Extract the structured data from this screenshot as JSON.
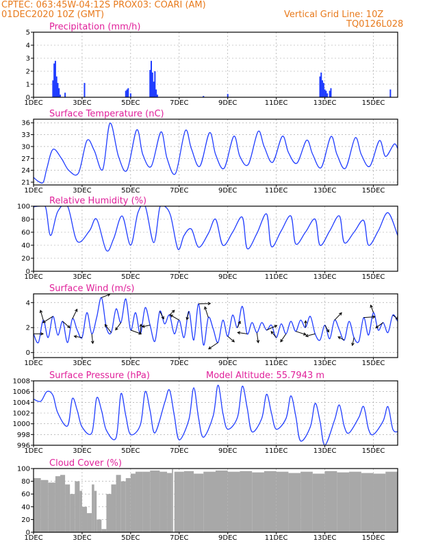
{
  "header": {
    "line1": "CPTEC:   063:45W-04:12S   PROX03: COARI (AM)",
    "line2": "01DEC2020 10Z (GMT)",
    "grid_note": "Vertical Grid Line: 10Z",
    "code": "TQ0126L028"
  },
  "colors": {
    "header": "#e87a1c",
    "panel_title": "#e0209a",
    "series": "#1f3cff",
    "cloud": "#a8a8a8",
    "wind_vectors": "#000000",
    "grid": "#999999"
  },
  "x_tick_labels": [
    "1DEC",
    "3DEC",
    "5DEC",
    "7DEC",
    "9DEC",
    "11DEC",
    "13DEC",
    "15DEC"
  ],
  "x_tick_days": [
    1,
    3,
    5,
    7,
    9,
    11,
    13,
    15
  ],
  "chart_data": [
    {
      "type": "bar",
      "title": "Precipitation (mm/h)",
      "ylim": [
        0,
        5
      ],
      "yticks": [
        "0",
        "1",
        "2",
        "3",
        "4",
        "5"
      ],
      "grid": true,
      "x_days": [
        1.8,
        1.85,
        1.9,
        1.95,
        2.0,
        2.05,
        2.1,
        2.3,
        3.1,
        4.8,
        4.85,
        4.9,
        5.0,
        5.8,
        5.85,
        5.9,
        5.95,
        6.0,
        6.05,
        6.1,
        8.0,
        9.0,
        12.8,
        12.85,
        12.9,
        12.95,
        13.0,
        13.05,
        13.1,
        13.2,
        13.25,
        15.7
      ],
      "values": [
        1.3,
        2.6,
        2.8,
        1.6,
        1.1,
        0.7,
        0.2,
        0.35,
        1.1,
        0.5,
        0.6,
        0.7,
        0.3,
        2.1,
        2.8,
        1.9,
        1.2,
        2.0,
        0.6,
        0.2,
        0.1,
        0.25,
        1.6,
        1.9,
        1.3,
        1.1,
        0.6,
        0.5,
        0.3,
        0.5,
        0.7,
        0.6
      ]
    },
    {
      "type": "line",
      "title": "Surface Temperature (nC)",
      "ylim": [
        20.3,
        36.9
      ],
      "yticks": [
        "21",
        "24",
        "27",
        "30",
        "33",
        "36"
      ],
      "grid": true,
      "x_days": [
        1.0,
        1.2,
        1.4,
        1.55,
        1.8,
        2.15,
        2.45,
        2.85,
        3.2,
        3.5,
        3.85,
        4.15,
        4.5,
        4.85,
        5.25,
        5.5,
        5.85,
        6.25,
        6.5,
        6.85,
        7.25,
        7.5,
        7.85,
        8.25,
        8.5,
        8.85,
        9.25,
        9.5,
        9.85,
        10.25,
        10.5,
        10.85,
        11.25,
        11.5,
        11.85,
        12.25,
        12.5,
        12.85,
        13.25,
        13.5,
        13.85,
        14.25,
        14.5,
        14.85,
        15.25,
        15.5,
        15.85,
        16.0
      ],
      "values": [
        22.2,
        21.2,
        21.0,
        24.5,
        29.3,
        27.0,
        24.0,
        23.3,
        31.5,
        29.0,
        24.2,
        35.9,
        27.5,
        24.0,
        34.2,
        28.0,
        25.0,
        33.7,
        27.0,
        23.2,
        34.0,
        29.5,
        25.0,
        33.5,
        28.0,
        24.5,
        32.6,
        27.5,
        25.5,
        33.8,
        30.0,
        26.0,
        32.6,
        28.5,
        25.8,
        31.6,
        28.0,
        24.7,
        32.5,
        28.0,
        24.5,
        32.2,
        28.0,
        25.0,
        31.5,
        27.5,
        30.6,
        29.5
      ]
    },
    {
      "type": "line",
      "title": "Relative Humidity (%)",
      "ylim": [
        0,
        100
      ],
      "yticks": [
        "0",
        "20",
        "40",
        "60",
        "80",
        "100"
      ],
      "grid": true,
      "x_days": [
        1.0,
        1.25,
        1.5,
        1.7,
        2.0,
        2.4,
        2.8,
        3.3,
        3.6,
        4.0,
        4.3,
        4.65,
        5.0,
        5.3,
        5.6,
        5.95,
        6.2,
        6.4,
        6.65,
        6.95,
        7.2,
        7.5,
        7.8,
        8.2,
        8.5,
        8.8,
        9.2,
        9.6,
        9.8,
        10.2,
        10.6,
        10.8,
        11.2,
        11.6,
        11.8,
        12.2,
        12.6,
        12.8,
        13.2,
        13.6,
        13.8,
        14.2,
        14.6,
        14.8,
        15.2,
        15.6,
        16.0
      ],
      "values": [
        99,
        100,
        98,
        55,
        92,
        100,
        46,
        62,
        80,
        32,
        50,
        85,
        40,
        90,
        100,
        44,
        98,
        100,
        85,
        34,
        55,
        65,
        37,
        58,
        80,
        40,
        60,
        83,
        35,
        58,
        88,
        38,
        62,
        85,
        42,
        60,
        80,
        40,
        62,
        85,
        44,
        60,
        78,
        40,
        62,
        90,
        55
      ]
    },
    {
      "type": "line",
      "title": "Surface Wind (m/s)",
      "ylim": [
        -0.4,
        4.7
      ],
      "yticks": [
        "0",
        "2",
        "4"
      ],
      "grid": true,
      "wind_vectors": true,
      "x_days": [
        1.0,
        1.2,
        1.4,
        1.6,
        1.8,
        2.0,
        2.2,
        2.4,
        2.6,
        2.8,
        3.0,
        3.2,
        3.4,
        3.6,
        3.8,
        4.0,
        4.2,
        4.4,
        4.6,
        4.8,
        5.0,
        5.2,
        5.4,
        5.6,
        5.8,
        6.0,
        6.2,
        6.4,
        6.6,
        6.8,
        7.0,
        7.2,
        7.4,
        7.6,
        7.8,
        8.0,
        8.2,
        8.4,
        8.6,
        8.8,
        9.0,
        9.2,
        9.4,
        9.6,
        9.8,
        10.0,
        10.2,
        10.4,
        10.6,
        10.8,
        11.0,
        11.2,
        11.4,
        11.6,
        11.8,
        12.0,
        12.2,
        12.4,
        12.6,
        12.8,
        13.0,
        13.2,
        13.4,
        13.6,
        13.8,
        14.0,
        14.2,
        14.4,
        14.6,
        14.8,
        15.0,
        15.2,
        15.4,
        15.6,
        15.8,
        16.0
      ],
      "values": [
        1.5,
        0.8,
        2.6,
        1.2,
        2.9,
        1.4,
        2.5,
        0.8,
        2.7,
        1.8,
        1.2,
        3.2,
        1.5,
        2.8,
        4.4,
        2.0,
        1.6,
        3.5,
        2.4,
        4.3,
        1.8,
        3.2,
        1.5,
        3.6,
        2.2,
        0.9,
        3.3,
        2.3,
        3.0,
        1.5,
        2.6,
        1.2,
        3.3,
        1.0,
        3.9,
        0.6,
        2.8,
        1.9,
        0.8,
        2.6,
        1.3,
        3.0,
        2.0,
        3.7,
        1.5,
        2.4,
        1.6,
        2.4,
        1.8,
        2.2,
        1.2,
        2.3,
        1.5,
        2.5,
        1.7,
        2.6,
        2.0,
        2.9,
        1.5,
        1.0,
        2.2,
        1.1,
        2.6,
        1.8,
        1.0,
        2.5,
        1.2,
        0.9,
        2.8,
        1.4,
        3.2,
        1.8,
        2.4,
        1.6,
        3.0,
        2.5
      ]
    },
    {
      "type": "line",
      "title": "Surface Pressure (hPa)",
      "annotation": "Model Altitude: 55.7943  m",
      "ylim": [
        996,
        1008
      ],
      "yticks": [
        "996",
        "998",
        "1000",
        "1002",
        "1004",
        "1006",
        "1008"
      ],
      "grid": true,
      "x_days": [
        1.0,
        1.3,
        1.55,
        1.8,
        2.0,
        2.4,
        2.6,
        2.8,
        3.0,
        3.4,
        3.6,
        3.8,
        4.0,
        4.4,
        4.6,
        4.8,
        5.0,
        5.4,
        5.6,
        5.8,
        6.0,
        6.4,
        6.6,
        6.8,
        7.0,
        7.4,
        7.6,
        7.8,
        8.0,
        8.4,
        8.6,
        8.8,
        9.0,
        9.4,
        9.6,
        9.8,
        10.0,
        10.4,
        10.6,
        10.8,
        11.0,
        11.4,
        11.6,
        11.8,
        12.0,
        12.4,
        12.6,
        12.8,
        13.0,
        13.4,
        13.6,
        13.8,
        14.0,
        14.4,
        14.6,
        14.8,
        15.0,
        15.4,
        15.6,
        15.8,
        16.0
      ],
      "values": [
        1004.6,
        1004.2,
        1006.0,
        1005.3,
        1002.0,
        999.6,
        1004.7,
        1002.5,
        999.4,
        998.3,
        1004.8,
        1002.5,
        998.8,
        997.4,
        1005.6,
        1001.5,
        998.0,
        999.8,
        1006.0,
        1002.5,
        998.3,
        1003.9,
        1006.3,
        1001.5,
        997.0,
        1000.8,
        1006.7,
        1001.0,
        997.5,
        1001.5,
        1007.2,
        1002.0,
        999.0,
        1001.2,
        1007.0,
        1003.0,
        998.5,
        1001.0,
        1005.5,
        1002.0,
        999.0,
        1001.0,
        1005.2,
        1001.5,
        996.8,
        999.4,
        1003.8,
        1000.5,
        996.0,
        1000.7,
        1003.5,
        999.5,
        998.3,
        1001.2,
        1003.2,
        999.0,
        998.0,
        1000.5,
        1003.2,
        999.0,
        998.5
      ]
    },
    {
      "type": "area",
      "title": "Cloud Cover (%)",
      "ylim": [
        0,
        100
      ],
      "yticks": [
        "0",
        "20",
        "40",
        "60",
        "80",
        "100"
      ],
      "grid": true,
      "x_days": [
        1.0,
        1.3,
        1.6,
        1.9,
        2.1,
        2.3,
        2.5,
        2.7,
        2.9,
        3.0,
        3.2,
        3.4,
        3.5,
        3.6,
        3.8,
        4.0,
        4.2,
        4.4,
        4.6,
        4.8,
        5.0,
        5.2,
        5.5,
        5.8,
        6.2,
        6.5,
        6.7,
        6.75,
        6.8,
        7.2,
        7.6,
        8.0,
        8.5,
        9.0,
        9.5,
        10.0,
        10.5,
        11.0,
        11.5,
        12.0,
        12.5,
        13.0,
        13.5,
        14.0,
        14.5,
        15.0,
        15.5,
        16.0
      ],
      "values": [
        85,
        82,
        78,
        88,
        90,
        75,
        60,
        80,
        65,
        40,
        30,
        75,
        65,
        20,
        5,
        60,
        75,
        90,
        80,
        85,
        92,
        95,
        95,
        97,
        95,
        93,
        99,
        0,
        95,
        96,
        92,
        95,
        97,
        95,
        96,
        94,
        96,
        95,
        93,
        95,
        92,
        96,
        94,
        95,
        93,
        92,
        95,
        90
      ]
    }
  ]
}
